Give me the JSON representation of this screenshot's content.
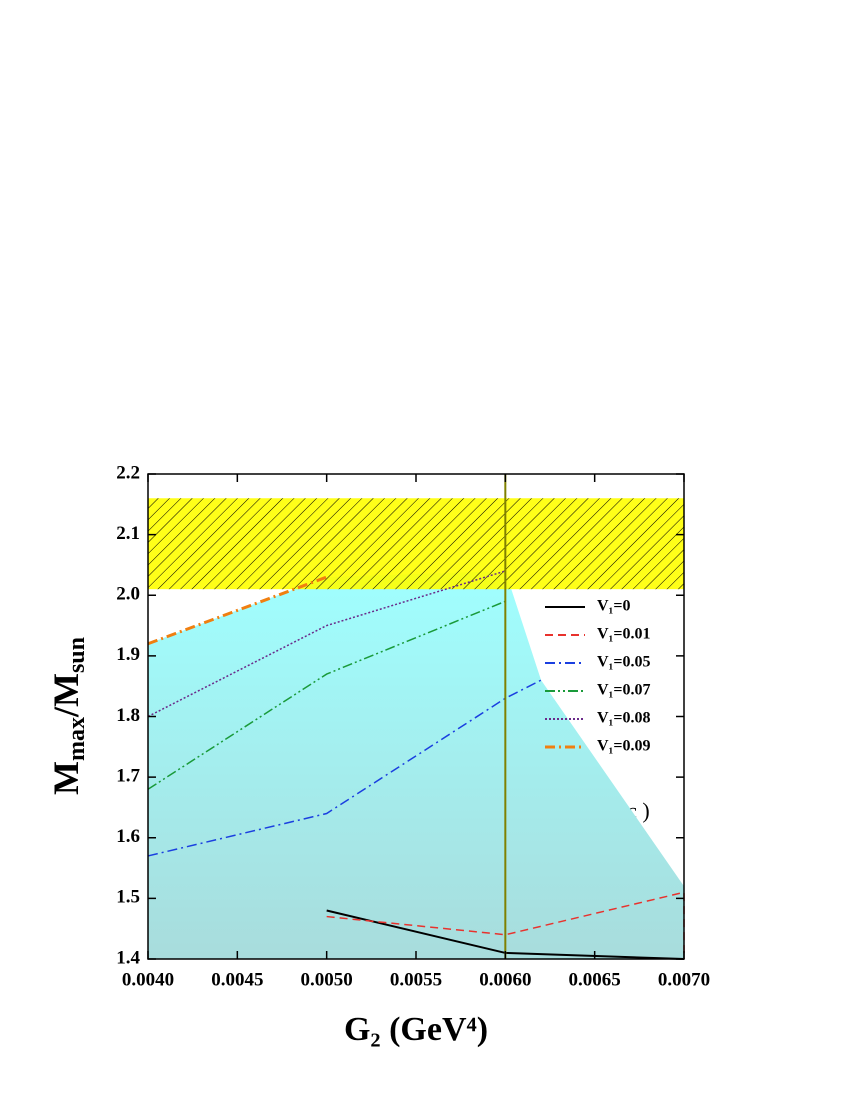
{
  "chart_data": {
    "type": "line",
    "xlabel": "G₂ (GeV⁴)",
    "ylabel": [
      {
        "text": "M"
      },
      {
        "text": "max",
        "sub": true
      },
      {
        "text": "/M"
      },
      {
        "text": "sun",
        "sub": true
      }
    ],
    "annotation": "( c )",
    "xlim": [
      0.004,
      0.007
    ],
    "xticks": [
      {
        "value": 0.004,
        "label": "0.0040"
      },
      0.0045,
      {
        "value": 0.005,
        "label": "0.0050"
      },
      0.0055,
      {
        "value": 0.006,
        "label": "0.0060"
      },
      0.0065,
      {
        "value": 0.007,
        "label": "0.0070"
      }
    ],
    "ylim": [
      1.4,
      2.2
    ],
    "yticks": [
      1.4,
      1.5,
      1.6,
      1.7,
      1.8,
      1.9,
      {
        "value": 2,
        "label": "2.0"
      },
      2.1,
      2.2
    ],
    "band": {
      "ylim": [
        2.01,
        2.16
      ],
      "color": "#ffff00"
    },
    "vline": {
      "x": 0.006,
      "color": "#808000"
    },
    "region": {
      "color": "#9ff6fa",
      "x": [
        0.004,
        0.004,
        0.005,
        0.006,
        0.0062,
        0.007,
        0.007
      ],
      "y": [
        1.4,
        1.92,
        2.03,
        2.04,
        1.86,
        1.52,
        1.4
      ]
    },
    "legend": "upper right",
    "series": [
      {
        "name": "V₁=0",
        "color": "#000000",
        "style": "solid",
        "x": [
          0.005,
          0.006,
          0.007
        ],
        "values": [
          1.48,
          1.41,
          1.4
        ]
      },
      {
        "name": "V₁=0.01",
        "color": "#e8322d",
        "style": "dashed",
        "x": [
          0.005,
          0.006,
          0.007,
          0.007
        ],
        "values": [
          1.47,
          1.44,
          1.51,
          1.4
        ]
      },
      {
        "name": "V₁=0.05",
        "color": "#1a3fe0",
        "style": "dashdot",
        "x": [
          0.004,
          0.005,
          0.006,
          0.0062
        ],
        "values": [
          1.57,
          1.64,
          1.83,
          1.86
        ]
      },
      {
        "name": "V₁=0.07",
        "color": "#1a9a3a",
        "style": "dashdotdot",
        "x": [
          0.004,
          0.005,
          0.006
        ],
        "values": [
          1.68,
          1.87,
          1.99
        ]
      },
      {
        "name": "V₁=0.08",
        "color": "#6a2a8a",
        "style": "dotted",
        "x": [
          0.004,
          0.005,
          0.006
        ],
        "values": [
          1.8,
          1.95,
          2.04
        ]
      },
      {
        "name": "V₁=0.09",
        "color": "#f07f10",
        "style": "dashdotthick",
        "x": [
          0.004,
          0.005
        ],
        "values": [
          1.92,
          2.03
        ]
      }
    ]
  }
}
